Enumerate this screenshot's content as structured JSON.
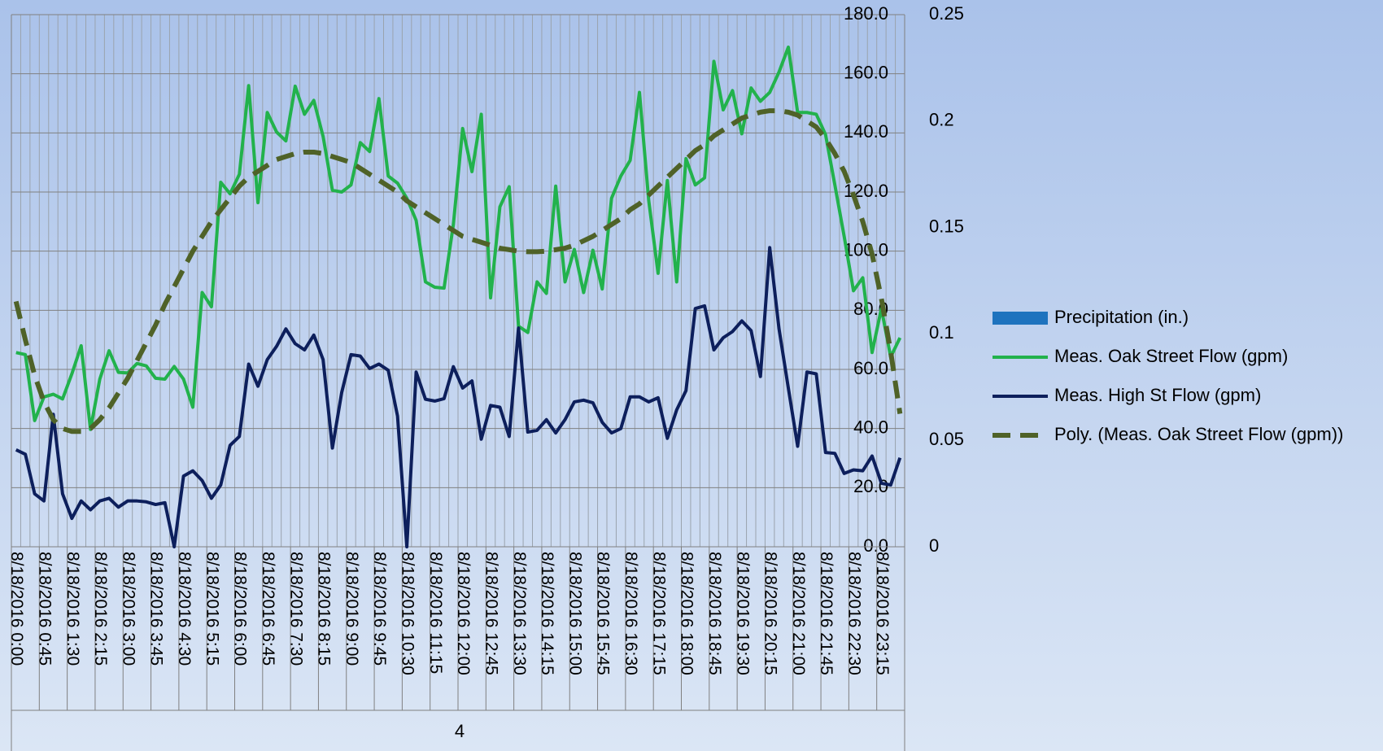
{
  "chart_data": {
    "type": "line",
    "categories": [
      "8/18/2016 0:00",
      null,
      null,
      "8/18/2016 0:45",
      null,
      null,
      "8/18/2016 1:30",
      null,
      null,
      "8/18/2016 2:15",
      null,
      null,
      "8/18/2016 3:00",
      null,
      null,
      "8/18/2016 3:45",
      null,
      null,
      "8/18/2016 4:30",
      null,
      null,
      "8/18/2016 5:15",
      null,
      null,
      "8/18/2016 6:00",
      null,
      null,
      "8/18/2016 6:45",
      null,
      null,
      "8/18/2016 7:30",
      null,
      null,
      "8/18/2016 8:15",
      null,
      null,
      "8/18/2016 9:00",
      null,
      null,
      "8/18/2016 9:45",
      null,
      null,
      "8/18/2016 10:30",
      null,
      null,
      "8/18/2016 11:15",
      null,
      null,
      "8/18/2016 12:00",
      null,
      null,
      "8/18/2016 12:45",
      null,
      null,
      "8/18/2016 13:30",
      null,
      null,
      "8/18/2016 14:15",
      null,
      null,
      "8/18/2016 15:00",
      null,
      null,
      "8/18/2016 15:45",
      null,
      null,
      "8/18/2016 16:30",
      null,
      null,
      "8/18/2016 17:15",
      null,
      null,
      "8/18/2016 18:00",
      null,
      null,
      "8/18/2016 18:45",
      null,
      null,
      "8/18/2016 19:30",
      null,
      null,
      "8/18/2016 20:15",
      null,
      null,
      "8/18/2016 21:00",
      null,
      null,
      "8/18/2016 21:45",
      null,
      null,
      "8/18/2016 22:30",
      null,
      null,
      "8/18/2016 23:15",
      null,
      null
    ],
    "x_group_label": "4",
    "series": [
      {
        "name": "Precipitation (in.)",
        "color": "#1e73be",
        "kind": "bar",
        "axis": "y2",
        "values": [
          0,
          0,
          0,
          0,
          0,
          0,
          0,
          0,
          0,
          0,
          0,
          0,
          0,
          0,
          0,
          0,
          0,
          0,
          0,
          0,
          0,
          0,
          0,
          0,
          0,
          0,
          0,
          0,
          0,
          0,
          0,
          0,
          0,
          0,
          0,
          0,
          0,
          0,
          0,
          0,
          0,
          0,
          0,
          0,
          0,
          0,
          0,
          0,
          0,
          0,
          0,
          0,
          0,
          0,
          0,
          0,
          0,
          0,
          0,
          0,
          0,
          0,
          0,
          0,
          0,
          0,
          0,
          0,
          0,
          0,
          0,
          0,
          0,
          0,
          0,
          0,
          0,
          0,
          0,
          0,
          0,
          0,
          0,
          0,
          0,
          0,
          0,
          0,
          0,
          0,
          0,
          0,
          0,
          0,
          0,
          0
        ]
      },
      {
        "name": "Meas. Oak Street Flow (gpm)",
        "color": "#22b24c",
        "kind": "line",
        "values": [
          65.7,
          65,
          42.7,
          50.7,
          51.6,
          50,
          58.5,
          68,
          39.7,
          56.7,
          66.3,
          59,
          58.8,
          62,
          61.2,
          57,
          56.7,
          61,
          56.7,
          47.2,
          86,
          81.2,
          123.3,
          119.4,
          126,
          156,
          116.4,
          146.9,
          140.3,
          137.3,
          155.8,
          146.3,
          151,
          138.8,
          120.6,
          120,
          122.4,
          136.7,
          133.7,
          151.6,
          125.4,
          123,
          117.9,
          110.4,
          89.6,
          87.8,
          87.5,
          109,
          141.5,
          126.9,
          146.3,
          84.2,
          115,
          121.8,
          74.6,
          72.5,
          89.6,
          85.7,
          122,
          89.6,
          100.6,
          86,
          100.3,
          87.2,
          117.9,
          125.4,
          130.7,
          153.7,
          117,
          92.5,
          123.9,
          89.6,
          131.3,
          122.4,
          124.8,
          164.2,
          147.8,
          154.3,
          139.7,
          155.2,
          150.7,
          153.7,
          160.6,
          169,
          146.9,
          146.9,
          146.3,
          139.4,
          122.4,
          105,
          86.6,
          91,
          65.7,
          80.6,
          64.2,
          70.7
        ]
      },
      {
        "name": "Meas. High St Flow (gpm)",
        "color": "#0d1f5c",
        "kind": "line",
        "values": [
          32.8,
          31.3,
          17.9,
          15.5,
          44.8,
          17.9,
          9.6,
          15.5,
          12.5,
          15.5,
          16.4,
          13.4,
          15.5,
          15.5,
          15.2,
          14.3,
          14.9,
          0,
          23.9,
          25.7,
          22.4,
          16.4,
          20.9,
          34.3,
          37.3,
          61.8,
          54.3,
          63.3,
          67.8,
          73.7,
          68.7,
          66.6,
          71.6,
          63.3,
          33.4,
          52.2,
          65,
          64.5,
          60.3,
          61.8,
          59.7,
          44.2,
          0,
          59.1,
          49.9,
          49.3,
          50.1,
          60.9,
          53.7,
          56.1,
          36.4,
          47.8,
          47.2,
          37.3,
          74,
          38.8,
          39.4,
          43,
          38.5,
          43,
          49,
          49.6,
          48.7,
          42.1,
          38.5,
          40,
          50.7,
          50.7,
          49,
          50.4,
          36.7,
          46.3,
          52.8,
          80.6,
          81.5,
          66.6,
          70.7,
          72.8,
          76.4,
          73.1,
          57.6,
          101.2,
          73.7,
          53.7,
          34,
          59.1,
          58.5,
          31.9,
          31.6,
          24.8,
          26,
          25.7,
          30.7,
          21.5,
          20.9,
          30.1
        ]
      },
      {
        "name": "Poly. (Meas. Oak Street Flow (gpm))",
        "color": "#4f6228",
        "kind": "line",
        "dashed": true,
        "values": [
          83,
          70,
          58,
          49,
          43,
          40,
          39,
          39,
          40,
          43,
          47,
          52,
          57,
          63,
          69,
          75,
          82,
          88,
          94,
          100,
          105,
          110,
          114,
          118,
          122,
          125,
          127,
          129,
          131,
          132,
          133,
          133.5,
          133.5,
          133,
          132,
          131,
          130,
          128,
          126,
          124,
          122,
          120,
          117,
          115,
          113,
          111,
          109,
          107,
          105,
          104,
          103,
          102,
          101,
          100.5,
          100,
          99.8,
          99.8,
          100,
          100.5,
          101,
          102,
          103.5,
          105,
          107,
          109,
          111,
          114,
          116,
          119,
          122,
          125,
          128,
          131,
          134,
          136,
          139,
          141,
          143,
          145,
          146,
          147,
          147.5,
          147.5,
          147,
          146,
          144,
          142,
          138,
          133,
          127,
          119,
          110,
          99,
          84,
          66,
          45
        ]
      }
    ],
    "ylim": [
      0,
      180
    ],
    "yticks": [
      {
        "value": 0,
        "label": "0.0"
      },
      {
        "value": 20,
        "label": "20.0"
      },
      {
        "value": 40,
        "label": "40.0"
      },
      {
        "value": 60,
        "label": "60.0"
      },
      {
        "value": 80,
        "label": "80.0"
      },
      {
        "value": 100,
        "label": "100.0"
      },
      {
        "value": 120,
        "label": "120.0"
      },
      {
        "value": 140,
        "label": "140.0"
      },
      {
        "value": 160,
        "label": "160.0"
      },
      {
        "value": 180,
        "label": "180.0"
      }
    ],
    "y2lim": [
      0,
      0.25
    ],
    "y2ticks": [
      0,
      0.05,
      0.1,
      0.15,
      0.2,
      0.25
    ],
    "grid": true,
    "legend": "right"
  }
}
